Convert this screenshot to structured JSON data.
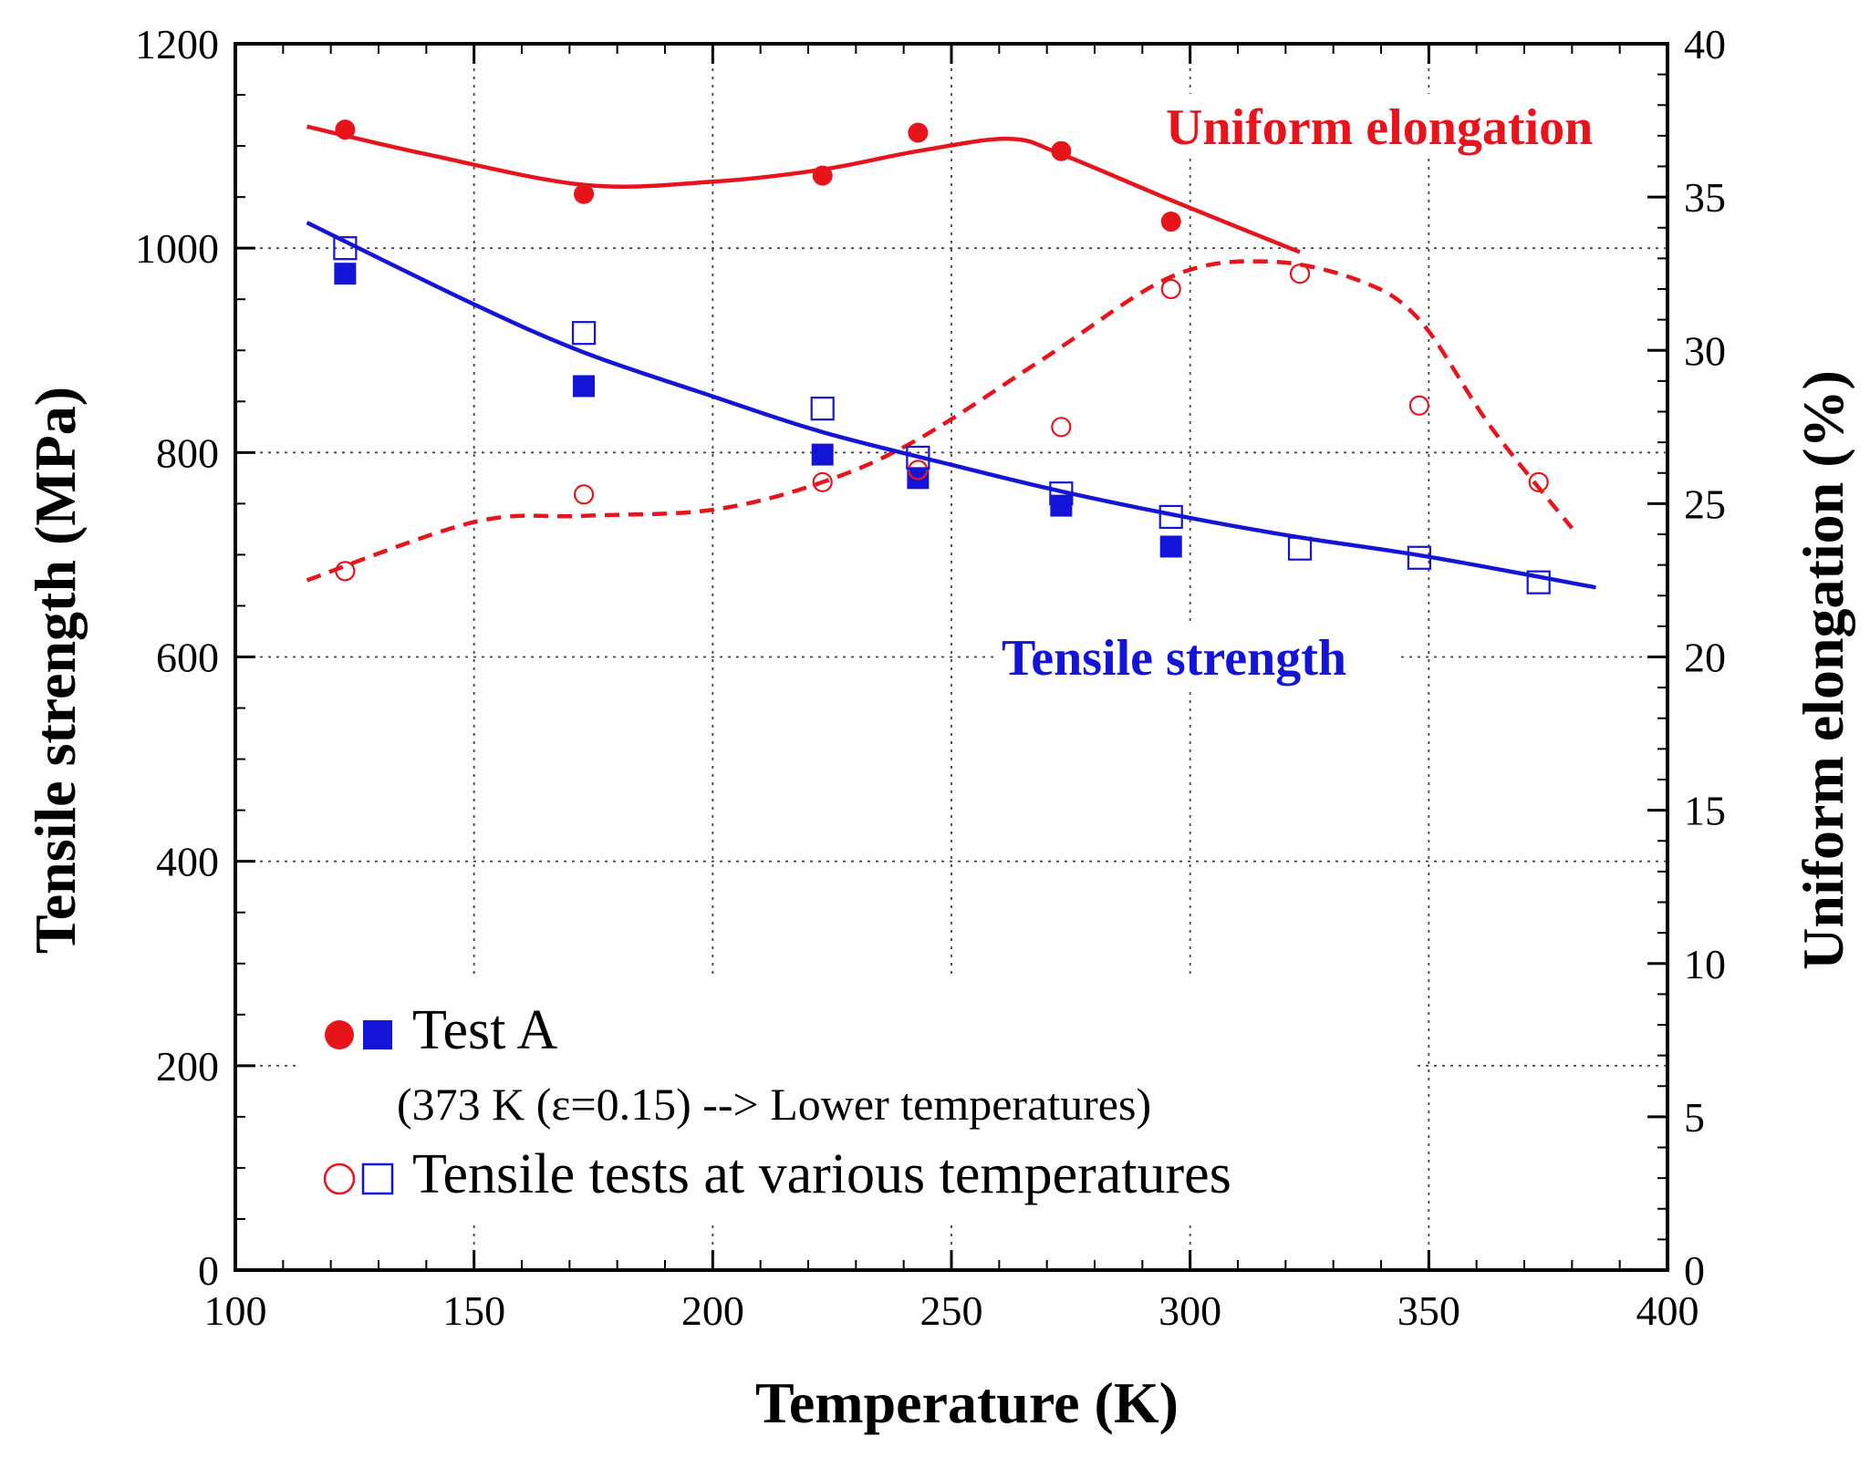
{
  "chart_data": {
    "type": "line",
    "x_label": "Temperature (K)",
    "y_left_label": "Tensile strength (MPa)",
    "y_right_label": "Uniform elongation (%)",
    "x_range": [
      100,
      400
    ],
    "x_ticks": [
      100,
      150,
      200,
      250,
      300,
      350,
      400
    ],
    "y_left_range": [
      0,
      1200
    ],
    "y_left_ticks": [
      0,
      200,
      400,
      600,
      800,
      1000,
      1200
    ],
    "y_right_range": [
      0,
      40
    ],
    "y_right_ticks": [
      0,
      5,
      10,
      15,
      20,
      25,
      30,
      35,
      40
    ],
    "grid": true,
    "colors": {
      "elongation": "#e8141c",
      "strength": "#1414d8"
    },
    "annotations": {
      "elongation_label": "Uniform elongation",
      "strength_label": "Tensile strength"
    },
    "series": [
      {
        "name": "Test A — uniform elongation",
        "axis": "right",
        "marker": "filled-circle",
        "points": [
          [
            123,
            37.2
          ],
          [
            173,
            35.1
          ],
          [
            223,
            35.7
          ],
          [
            243,
            37.1
          ],
          [
            273,
            36.5
          ],
          [
            296,
            34.2
          ]
        ]
      },
      {
        "name": "Test A — tensile strength",
        "axis": "left",
        "marker": "filled-square",
        "points": [
          [
            123,
            975
          ],
          [
            173,
            865
          ],
          [
            223,
            798
          ],
          [
            243,
            775
          ],
          [
            273,
            748
          ],
          [
            296,
            708
          ]
        ]
      },
      {
        "name": "Various temperatures — uniform elongation",
        "axis": "right",
        "marker": "open-circle",
        "points": [
          [
            123,
            22.8
          ],
          [
            173,
            25.3
          ],
          [
            223,
            25.7
          ],
          [
            243,
            26.1
          ],
          [
            273,
            27.5
          ],
          [
            296,
            32.0
          ],
          [
            323,
            32.5
          ],
          [
            348,
            28.2
          ],
          [
            373,
            25.7
          ]
        ]
      },
      {
        "name": "Various temperatures — tensile strength",
        "axis": "left",
        "marker": "open-square",
        "points": [
          [
            123,
            1000
          ],
          [
            173,
            917
          ],
          [
            223,
            843
          ],
          [
            243,
            795
          ],
          [
            273,
            760
          ],
          [
            296,
            737
          ],
          [
            323,
            706
          ],
          [
            348,
            697
          ],
          [
            373,
            673
          ]
        ]
      },
      {
        "name": "Uniform elongation trend (Test A)",
        "axis": "right",
        "style": "solid",
        "curve": [
          [
            115,
            37.3
          ],
          [
            140,
            36.4
          ],
          [
            173,
            35.4
          ],
          [
            200,
            35.5
          ],
          [
            223,
            35.9
          ],
          [
            243,
            36.5
          ],
          [
            262,
            36.9
          ],
          [
            273,
            36.4
          ],
          [
            296,
            34.9
          ],
          [
            323,
            33.2
          ]
        ]
      },
      {
        "name": "Uniform elongation trend (various temperatures)",
        "axis": "right",
        "style": "dashed",
        "curve": [
          [
            115,
            22.5
          ],
          [
            150,
            24.4
          ],
          [
            173,
            24.6
          ],
          [
            200,
            24.8
          ],
          [
            223,
            25.7
          ],
          [
            243,
            27.1
          ],
          [
            270,
            29.8
          ],
          [
            296,
            32.4
          ],
          [
            316,
            32.9
          ],
          [
            335,
            32.3
          ],
          [
            348,
            31.0
          ],
          [
            363,
            27.5
          ],
          [
            380,
            24.2
          ]
        ]
      },
      {
        "name": "Tensile strength trend",
        "axis": "left",
        "style": "solid",
        "curve": [
          [
            115,
            1025
          ],
          [
            150,
            945
          ],
          [
            173,
            898
          ],
          [
            200,
            855
          ],
          [
            223,
            820
          ],
          [
            250,
            788
          ],
          [
            273,
            762
          ],
          [
            300,
            736
          ],
          [
            323,
            717
          ],
          [
            350,
            698
          ],
          [
            385,
            668
          ]
        ]
      }
    ],
    "legend": {
      "position": "bottom-center",
      "entries": [
        {
          "symbols": [
            "filled-circle",
            "filled-square"
          ],
          "label": "Test A",
          "sublabel": "(373 K (ε=0.15) --> Lower temperatures)"
        },
        {
          "symbols": [
            "open-circle",
            "open-square"
          ],
          "label": "Tensile tests at various temperatures"
        }
      ]
    }
  }
}
